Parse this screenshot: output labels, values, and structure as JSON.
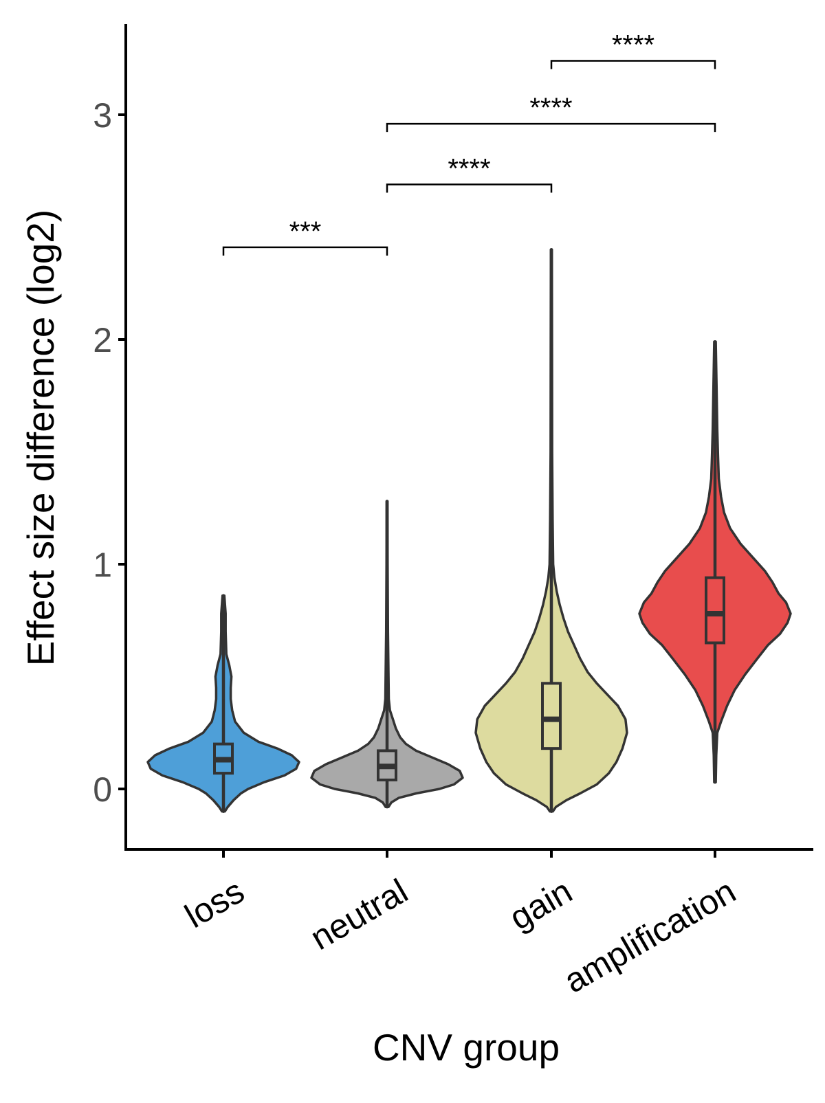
{
  "chart_data": {
    "type": "violin",
    "xlabel": "CNV group",
    "ylabel": "Effect size difference (log2)",
    "ylim": [
      -0.27,
      3.4
    ],
    "yticks": [
      0,
      1,
      2,
      3
    ],
    "categories": [
      "loss",
      "neutral",
      "gain",
      "amplification"
    ],
    "groups": [
      {
        "name": "loss",
        "color": "#4e9fd8",
        "min": 0.0,
        "q1": 0.07,
        "median": 0.13,
        "q3": 0.2,
        "max": 0.4,
        "violin_min": -0.1,
        "violin_max": 0.86,
        "density": [
          [
            -0.1,
            0.01
          ],
          [
            -0.08,
            0.03
          ],
          [
            -0.05,
            0.07
          ],
          [
            -0.02,
            0.12
          ],
          [
            0.0,
            0.17
          ],
          [
            0.03,
            0.28
          ],
          [
            0.06,
            0.42
          ],
          [
            0.09,
            0.5
          ],
          [
            0.12,
            0.52
          ],
          [
            0.15,
            0.47
          ],
          [
            0.18,
            0.37
          ],
          [
            0.21,
            0.24
          ],
          [
            0.25,
            0.14
          ],
          [
            0.3,
            0.08
          ],
          [
            0.35,
            0.06
          ],
          [
            0.4,
            0.05
          ],
          [
            0.45,
            0.05
          ],
          [
            0.5,
            0.055
          ],
          [
            0.55,
            0.04
          ],
          [
            0.6,
            0.02
          ],
          [
            0.7,
            0.015
          ],
          [
            0.78,
            0.015
          ],
          [
            0.86,
            0.006
          ]
        ]
      },
      {
        "name": "neutral",
        "color": "#a9a9a9",
        "min": 0.0,
        "q1": 0.04,
        "median": 0.1,
        "q3": 0.17,
        "max": 0.32,
        "violin_min": -0.08,
        "violin_max": 1.28,
        "density": [
          [
            -0.08,
            0.01
          ],
          [
            -0.06,
            0.03
          ],
          [
            -0.04,
            0.08
          ],
          [
            -0.02,
            0.2
          ],
          [
            0.0,
            0.36
          ],
          [
            0.02,
            0.46
          ],
          [
            0.05,
            0.52
          ],
          [
            0.08,
            0.5
          ],
          [
            0.11,
            0.42
          ],
          [
            0.14,
            0.31
          ],
          [
            0.17,
            0.2
          ],
          [
            0.2,
            0.13
          ],
          [
            0.23,
            0.09
          ],
          [
            0.27,
            0.06
          ],
          [
            0.31,
            0.04
          ],
          [
            0.35,
            0.02
          ],
          [
            0.4,
            0.012
          ],
          [
            0.5,
            0.01
          ],
          [
            0.7,
            0.006
          ],
          [
            1.0,
            0.004
          ],
          [
            1.28,
            0.003
          ]
        ]
      },
      {
        "name": "gain",
        "color": "#dddb9f",
        "min": 0.0,
        "q1": 0.18,
        "median": 0.31,
        "q3": 0.47,
        "max": 0.88,
        "violin_min": -0.1,
        "violin_max": 2.4,
        "density": [
          [
            -0.1,
            0.01
          ],
          [
            -0.08,
            0.03
          ],
          [
            -0.05,
            0.1
          ],
          [
            -0.02,
            0.19
          ],
          [
            0.02,
            0.3
          ],
          [
            0.07,
            0.38
          ],
          [
            0.12,
            0.43
          ],
          [
            0.18,
            0.47
          ],
          [
            0.25,
            0.5
          ],
          [
            0.31,
            0.49
          ],
          [
            0.37,
            0.44
          ],
          [
            0.42,
            0.37
          ],
          [
            0.47,
            0.3
          ],
          [
            0.52,
            0.24
          ],
          [
            0.58,
            0.19
          ],
          [
            0.64,
            0.15
          ],
          [
            0.7,
            0.11
          ],
          [
            0.76,
            0.08
          ],
          [
            0.82,
            0.055
          ],
          [
            0.88,
            0.035
          ],
          [
            0.94,
            0.02
          ],
          [
            1.0,
            0.012
          ],
          [
            1.2,
            0.008
          ],
          [
            1.5,
            0.005
          ],
          [
            2.0,
            0.004
          ],
          [
            2.4,
            0.003
          ]
        ]
      },
      {
        "name": "amplification",
        "color": "#e84d4d",
        "min": 0.28,
        "q1": 0.65,
        "median": 0.78,
        "q3": 0.94,
        "max": 1.36,
        "violin_min": 0.03,
        "violin_max": 1.99,
        "density": [
          [
            0.03,
            0.005
          ],
          [
            0.15,
            0.008
          ],
          [
            0.25,
            0.015
          ],
          [
            0.3,
            0.04
          ],
          [
            0.37,
            0.08
          ],
          [
            0.44,
            0.13
          ],
          [
            0.51,
            0.2
          ],
          [
            0.58,
            0.28
          ],
          [
            0.64,
            0.35
          ],
          [
            0.69,
            0.43
          ],
          [
            0.74,
            0.48
          ],
          [
            0.78,
            0.5
          ],
          [
            0.83,
            0.47
          ],
          [
            0.87,
            0.42
          ],
          [
            0.92,
            0.38
          ],
          [
            0.97,
            0.33
          ],
          [
            1.03,
            0.25
          ],
          [
            1.09,
            0.17
          ],
          [
            1.16,
            0.1
          ],
          [
            1.23,
            0.06
          ],
          [
            1.3,
            0.04
          ],
          [
            1.38,
            0.025
          ],
          [
            1.48,
            0.02
          ],
          [
            1.6,
            0.015
          ],
          [
            1.8,
            0.01
          ],
          [
            1.99,
            0.005
          ]
        ]
      }
    ],
    "significance": [
      {
        "from": "loss",
        "to": "neutral",
        "y": 2.41,
        "label": "***"
      },
      {
        "from": "neutral",
        "to": "gain",
        "y": 2.69,
        "label": "****"
      },
      {
        "from": "neutral",
        "to": "amplification",
        "y": 2.96,
        "label": "****"
      },
      {
        "from": "gain",
        "to": "amplification",
        "y": 3.24,
        "label": "****"
      }
    ],
    "grid": false,
    "legend": "none"
  }
}
